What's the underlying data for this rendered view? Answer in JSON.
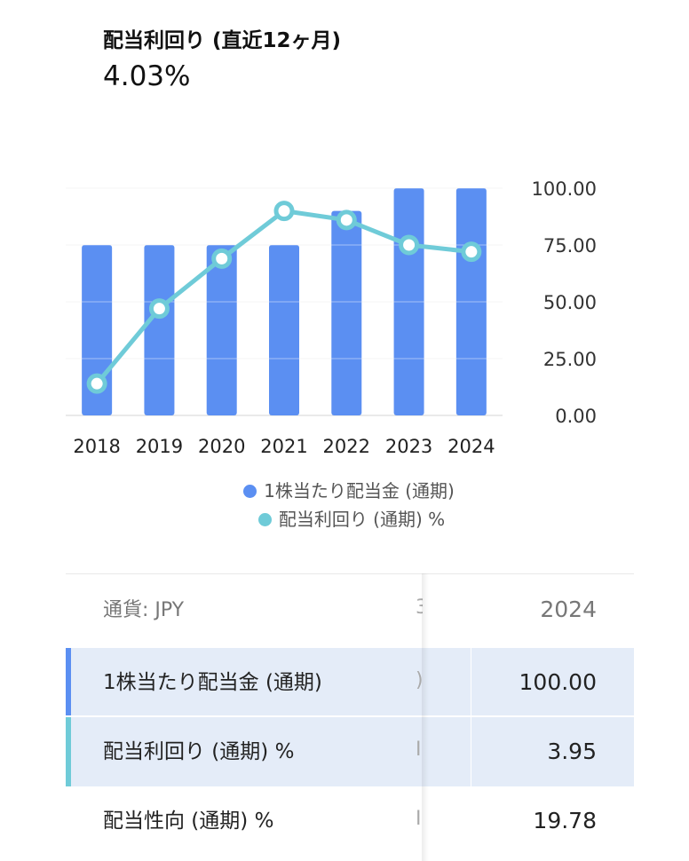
{
  "header": {
    "title": "配当利回り (直近12ヶ月)",
    "value": "4.03%"
  },
  "colors": {
    "bar": "#5b8ff2",
    "line": "#6fcbd8",
    "highlight_row": "#e4ecf8"
  },
  "chart_data": {
    "type": "bar",
    "categories": [
      "2018",
      "2019",
      "2020",
      "2021",
      "2022",
      "2023",
      "2024"
    ],
    "series": [
      {
        "name": "1株当たり配当金 (通期)",
        "type": "bar",
        "values": [
          75,
          75,
          75,
          75,
          90,
          100,
          100
        ]
      },
      {
        "name": "配当利回り (通期) %",
        "type": "line",
        "values": [
          14,
          47,
          69,
          90,
          86,
          75,
          72
        ]
      }
    ],
    "y_ticks": [
      "100.00",
      "75.00",
      "50.00",
      "25.00",
      "0.00"
    ],
    "ylim": [
      0,
      100
    ],
    "y_axis_side": "right",
    "grid": true,
    "legend_position": "bottom"
  },
  "legend": {
    "items": [
      {
        "label": "1株当たり配当金 (通期)"
      },
      {
        "label": "配当利回り (通期) %"
      }
    ]
  },
  "table": {
    "currency_label": "通貨: JPY",
    "partial_prev_col": "3",
    "year_header": "2024",
    "rows": [
      {
        "label": "1株当たり配当金 (通期)",
        "value": "100.00",
        "partial": ")"
      },
      {
        "label": "配当利回り (通期) %",
        "value": "3.95",
        "partial": "I"
      },
      {
        "label": "配当性向 (通期) %",
        "value": "19.78",
        "partial": "I"
      }
    ]
  }
}
